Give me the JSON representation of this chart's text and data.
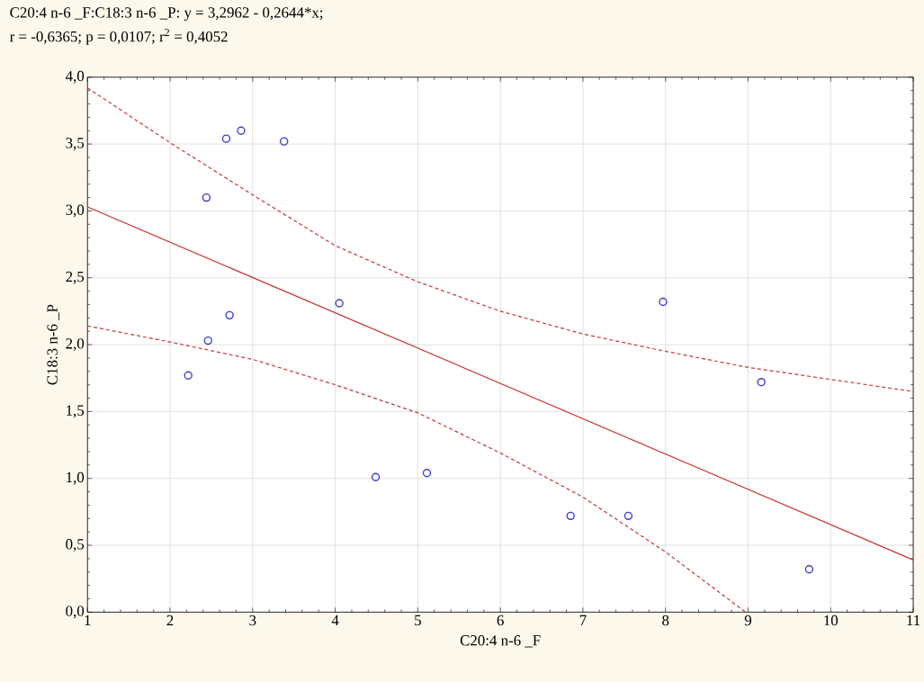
{
  "chart_data": {
    "type": "scatter",
    "title": "C20:4 n-6 _F:C18:3 n-6 _P:   y = 3,2962 - 0,2644*x;",
    "subtitle": "r = -0,6365; p = 0,0107; r$^{2}$ = 0,4052",
    "xlabel": "C20:4 n-6 _F",
    "ylabel": "C18:3 n-6 _P",
    "xlim": [
      1,
      11
    ],
    "ylim": [
      0,
      4
    ],
    "xticks": [
      1,
      2,
      3,
      4,
      5,
      6,
      7,
      8,
      9,
      10,
      11
    ],
    "yticks": [
      {
        "value": 0,
        "label": "0,0"
      },
      {
        "value": 0.5,
        "label": "0,5"
      },
      {
        "value": 1,
        "label": "1,0"
      },
      {
        "value": 1.5,
        "label": "1,5"
      },
      {
        "value": 2,
        "label": "2,0"
      },
      {
        "value": 2.5,
        "label": "2,5"
      },
      {
        "value": 3,
        "label": "3,0"
      },
      {
        "value": 3.5,
        "label": "3,5"
      },
      {
        "value": 4,
        "label": "4,0"
      }
    ],
    "grid": true,
    "series": [
      {
        "marker": "circle",
        "color": "#3c3cc8",
        "x": [
          2.22,
          2.46,
          2.72,
          2.44,
          2.68,
          2.86,
          3.38,
          4.05,
          4.49,
          5.11,
          6.85,
          7.55,
          7.97,
          9.16,
          9.74
        ],
        "values": [
          1.77,
          2.03,
          2.22,
          3.1,
          3.54,
          3.6,
          3.52,
          2.31,
          1.01,
          1.04,
          0.72,
          0.72,
          2.32,
          1.72,
          0.32
        ]
      },
      {
        "type": "line",
        "marker": "none",
        "line_style": "solid",
        "color": "#cc3333",
        "x": [
          1,
          11
        ],
        "values": [
          3.03,
          0.39
        ]
      },
      {
        "type": "line",
        "marker": "none",
        "line_style": "dashed",
        "color": "#cc3333",
        "x": [
          1,
          2,
          3,
          4,
          5,
          6,
          7,
          8,
          9,
          10,
          11
        ],
        "values": [
          3.92,
          3.51,
          3.12,
          2.74,
          2.47,
          2.25,
          2.08,
          1.95,
          1.83,
          1.74,
          1.65
        ]
      },
      {
        "type": "line",
        "marker": "none",
        "line_style": "dashed",
        "color": "#cc3333",
        "x": [
          1,
          2,
          3,
          4,
          5,
          6,
          7,
          8,
          8.97
        ],
        "values": [
          2.14,
          2.02,
          1.89,
          1.7,
          1.49,
          1.19,
          0.86,
          0.45,
          0
        ]
      }
    ]
  }
}
